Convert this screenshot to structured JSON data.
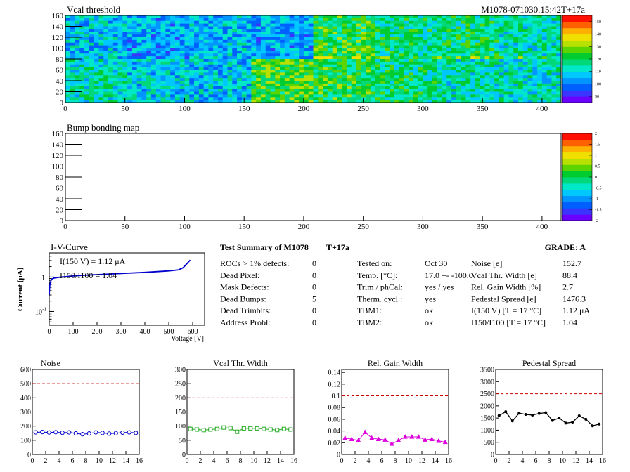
{
  "header": {
    "map_title": "Vcal threshold",
    "module_id": "M1078-071030.15:42T+17a",
    "bump_title": "Bump bonding map"
  },
  "colors": {
    "vcal_palette": [
      "#6a00ff",
      "#3b34ff",
      "#0060ff",
      "#0095ff",
      "#00c8ff",
      "#00e8c8",
      "#00d87a",
      "#00cc30",
      "#5cd400",
      "#b8e000",
      "#f0e000",
      "#ffb000",
      "#ff6000",
      "#ff1000"
    ],
    "noise": "#0000cc",
    "vcal_width": "#22aa22",
    "gain": "#dd00dd",
    "pedestal": "#000000",
    "limit_line": "#cc0000",
    "iv_curve": "#0000cc"
  },
  "summary": {
    "title": "Test Summary of M1078",
    "temp_tag": "T+17a",
    "grade": "GRADE:  A",
    "left": [
      {
        "label": "ROCs > 1% defects:",
        "value": "0"
      },
      {
        "label": "Dead Pixel:",
        "value": "0"
      },
      {
        "label": "Mask Defects:",
        "value": "0"
      },
      {
        "label": "Dead Bumps:",
        "value": "5"
      },
      {
        "label": "Dead Trimbits:",
        "value": "0"
      },
      {
        "label": "Address Probl:",
        "value": "0"
      }
    ],
    "mid": [
      {
        "label": "Tested on:",
        "value": "Oct 30"
      },
      {
        "label": "Temp. [°C]:",
        "value": "17.0 +- -100.0"
      },
      {
        "label": "Trim / phCal:",
        "value": "yes / yes"
      },
      {
        "label": "Therm. cycl.:",
        "value": "yes"
      },
      {
        "label": "TBM1:",
        "value": "ok"
      },
      {
        "label": "TBM2:",
        "value": "ok"
      }
    ],
    "right": [
      {
        "label": "Noise [e]",
        "value": "152.7"
      },
      {
        "label": "Vcal Thr. Width [e]",
        "value": "88.4"
      },
      {
        "label": "Rel. Gain Width [%]",
        "value": "2.7"
      },
      {
        "label": "Pedestal Spread [e]",
        "value": "1476.3"
      },
      {
        "label": "I(150 V) [T = 17 °C]",
        "value": "1.12 μA"
      },
      {
        "label": "I150/I100  [T = 17 °C]",
        "value": "1.04"
      }
    ]
  },
  "chart_data": [
    {
      "type": "heatmap",
      "title": "Vcal threshold",
      "x_ticks": [
        0,
        50,
        100,
        150,
        200,
        250,
        300,
        350,
        400
      ],
      "y_ticks": [
        0,
        20,
        40,
        60,
        80,
        100,
        120,
        140,
        160
      ],
      "xlim": [
        0,
        416
      ],
      "ylim": [
        0,
        160
      ],
      "z_ticks": [
        90,
        100,
        110,
        120,
        130,
        140,
        150
      ],
      "zlim": [
        85,
        155
      ],
      "roc_means_top": [
        107,
        103,
        105,
        103,
        123,
        116,
        118,
        113
      ],
      "roc_means_bottom": [
        113,
        108,
        106,
        125,
        121,
        117,
        113,
        111
      ]
    },
    {
      "type": "heatmap",
      "title": "Bump bonding map",
      "x_ticks": [
        0,
        50,
        100,
        150,
        200,
        250,
        300,
        350,
        400
      ],
      "y_ticks": [
        0,
        20,
        40,
        60,
        80,
        100,
        120,
        140,
        160
      ],
      "xlim": [
        0,
        416
      ],
      "ylim": [
        0,
        160
      ],
      "z_ticks": [
        -2,
        -1.5,
        -1,
        -0.5,
        0,
        0.5,
        1,
        1.5,
        2
      ],
      "zlim": [
        -2,
        2
      ]
    },
    {
      "type": "line",
      "title": "I-V-Curve",
      "xlabel": "Voltage [V]",
      "ylabel": "Current [μA]",
      "x_ticks": [
        0,
        100,
        200,
        300,
        400,
        500,
        600
      ],
      "xlim": [
        0,
        650
      ],
      "ylim": [
        0.04,
        5
      ],
      "y_log": true,
      "annotation_1": "I(150 V) = 1.12 μA",
      "annotation_2": "I150/I100 = 1.04",
      "x": [
        0,
        2,
        5,
        8,
        12,
        20,
        40,
        100,
        150,
        200,
        300,
        400,
        500,
        540,
        560,
        570,
        580,
        585,
        590
      ],
      "y": [
        0.3,
        0.55,
        0.7,
        0.8,
        0.88,
        0.93,
        0.98,
        1.07,
        1.12,
        1.17,
        1.26,
        1.36,
        1.5,
        1.6,
        1.85,
        2.2,
        2.6,
        2.85,
        3.1
      ]
    },
    {
      "type": "line",
      "title": "Noise",
      "x_ticks": [
        0,
        2,
        4,
        6,
        8,
        10,
        12,
        14,
        16
      ],
      "y_ticks": [
        0,
        100,
        200,
        300,
        400,
        500,
        600
      ],
      "xlim": [
        0,
        16
      ],
      "ylim": [
        0,
        600
      ],
      "limit": 500,
      "x": [
        0.5,
        1.5,
        2.5,
        3.5,
        4.5,
        5.5,
        6.5,
        7.5,
        8.5,
        9.5,
        10.5,
        11.5,
        12.5,
        13.5,
        14.5,
        15.5
      ],
      "y": [
        156,
        158,
        155,
        157,
        153,
        156,
        149,
        143,
        148,
        156,
        152,
        147,
        150,
        154,
        156,
        152
      ]
    },
    {
      "type": "line",
      "title": "Vcal Thr. Width",
      "x_ticks": [
        0,
        2,
        4,
        6,
        8,
        10,
        12,
        14,
        16
      ],
      "y_ticks": [
        0,
        50,
        100,
        150,
        200,
        250,
        300
      ],
      "xlim": [
        0,
        16
      ],
      "ylim": [
        0,
        300
      ],
      "limit": 200,
      "x": [
        0.5,
        1.5,
        2.5,
        3.5,
        4.5,
        5.5,
        6.5,
        7.5,
        8.5,
        9.5,
        10.5,
        11.5,
        12.5,
        13.5,
        14.5,
        15.5
      ],
      "y": [
        90,
        88,
        86,
        88,
        90,
        95,
        93,
        80,
        92,
        92,
        92,
        90,
        88,
        86,
        90,
        88
      ]
    },
    {
      "type": "line",
      "title": "Rel. Gain Width",
      "x_ticks": [
        0,
        2,
        4,
        6,
        8,
        10,
        12,
        14,
        16
      ],
      "y_ticks": [
        0,
        0.02,
        0.04,
        0.06,
        0.08,
        0.1,
        0.12,
        0.14
      ],
      "xlim": [
        0,
        16
      ],
      "ylim": [
        0,
        0.145
      ],
      "limit": 0.1,
      "x": [
        0.5,
        1.5,
        2.5,
        3.5,
        4.5,
        5.5,
        6.5,
        7.5,
        8.5,
        9.5,
        10.5,
        11.5,
        12.5,
        13.5,
        14.5,
        15.5
      ],
      "y": [
        0.028,
        0.026,
        0.024,
        0.038,
        0.028,
        0.026,
        0.025,
        0.018,
        0.024,
        0.03,
        0.03,
        0.03,
        0.025,
        0.026,
        0.023,
        0.021
      ]
    },
    {
      "type": "line",
      "title": "Pedestal Spread",
      "x_ticks": [
        0,
        2,
        4,
        6,
        8,
        10,
        12,
        14,
        16
      ],
      "y_ticks": [
        0,
        500,
        1000,
        1500,
        2000,
        2500,
        3000,
        3500
      ],
      "xlim": [
        0,
        16
      ],
      "ylim": [
        0,
        3500
      ],
      "limit": 2500,
      "x": [
        0.5,
        1.5,
        2.5,
        3.5,
        4.5,
        5.5,
        6.5,
        7.5,
        8.5,
        9.5,
        10.5,
        11.5,
        12.5,
        13.5,
        14.5,
        15.5
      ],
      "y": [
        1600,
        1760,
        1380,
        1700,
        1650,
        1620,
        1690,
        1720,
        1400,
        1500,
        1290,
        1330,
        1590,
        1450,
        1180,
        1250
      ]
    }
  ]
}
